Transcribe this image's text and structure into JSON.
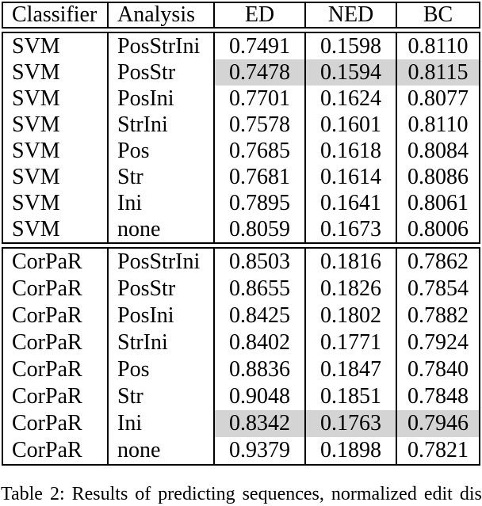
{
  "table": {
    "columns": [
      {
        "key": "classifier",
        "label": "Classifier"
      },
      {
        "key": "analysis",
        "label": "Analysis"
      },
      {
        "key": "ed",
        "label": "ED"
      },
      {
        "key": "ned",
        "label": "NED"
      },
      {
        "key": "bc",
        "label": "BC"
      }
    ],
    "sections": [
      {
        "name": "svm",
        "rows": [
          {
            "classifier": "SVM",
            "analysis": "PosStrIni",
            "ed": "0.7491",
            "ned": "0.1598",
            "bc": "0.8110",
            "highlighted": false
          },
          {
            "classifier": "SVM",
            "analysis": "PosStr",
            "ed": "0.7478",
            "ned": "0.1594",
            "bc": "0.8115",
            "highlighted": true
          },
          {
            "classifier": "SVM",
            "analysis": "PosIni",
            "ed": "0.7701",
            "ned": "0.1624",
            "bc": "0.8077",
            "highlighted": false
          },
          {
            "classifier": "SVM",
            "analysis": "StrIni",
            "ed": "0.7578",
            "ned": "0.1601",
            "bc": "0.8110",
            "highlighted": false
          },
          {
            "classifier": "SVM",
            "analysis": "Pos",
            "ed": "0.7685",
            "ned": "0.1618",
            "bc": "0.8084",
            "highlighted": false
          },
          {
            "classifier": "SVM",
            "analysis": "Str",
            "ed": "0.7681",
            "ned": "0.1614",
            "bc": "0.8086",
            "highlighted": false
          },
          {
            "classifier": "SVM",
            "analysis": "Ini",
            "ed": "0.7895",
            "ned": "0.1641",
            "bc": "0.8061",
            "highlighted": false
          },
          {
            "classifier": "SVM",
            "analysis": "none",
            "ed": "0.8059",
            "ned": "0.1673",
            "bc": "0.8006",
            "highlighted": false
          }
        ]
      },
      {
        "name": "corpar",
        "rows": [
          {
            "classifier": "CorPaR",
            "analysis": "PosStrIni",
            "ed": "0.8503",
            "ned": "0.1816",
            "bc": "0.7862",
            "highlighted": false
          },
          {
            "classifier": "CorPaR",
            "analysis": "PosStr",
            "ed": "0.8655",
            "ned": "0.1826",
            "bc": "0.7854",
            "highlighted": false
          },
          {
            "classifier": "CorPaR",
            "analysis": "PosIni",
            "ed": "0.8425",
            "ned": "0.1802",
            "bc": "0.7882",
            "highlighted": false
          },
          {
            "classifier": "CorPaR",
            "analysis": "StrIni",
            "ed": "0.8402",
            "ned": "0.1771",
            "bc": "0.7924",
            "highlighted": false
          },
          {
            "classifier": "CorPaR",
            "analysis": "Pos",
            "ed": "0.8836",
            "ned": "0.1847",
            "bc": "0.7840",
            "highlighted": false
          },
          {
            "classifier": "CorPaR",
            "analysis": "Str",
            "ed": "0.9048",
            "ned": "0.1851",
            "bc": "0.7848",
            "highlighted": false
          },
          {
            "classifier": "CorPaR",
            "analysis": "Ini",
            "ed": "0.8342",
            "ned": "0.1763",
            "bc": "0.7946",
            "highlighted": true
          },
          {
            "classifier": "CorPaR",
            "analysis": "none",
            "ed": "0.9379",
            "ned": "0.1898",
            "bc": "0.7821",
            "highlighted": false
          }
        ]
      }
    ]
  },
  "caption": "Table 2: Results of predicting sequences, normalized edit dis-",
  "colors": {
    "highlight_row_bg": "#d4d4d4",
    "border": "#000000",
    "text": "#000000"
  }
}
